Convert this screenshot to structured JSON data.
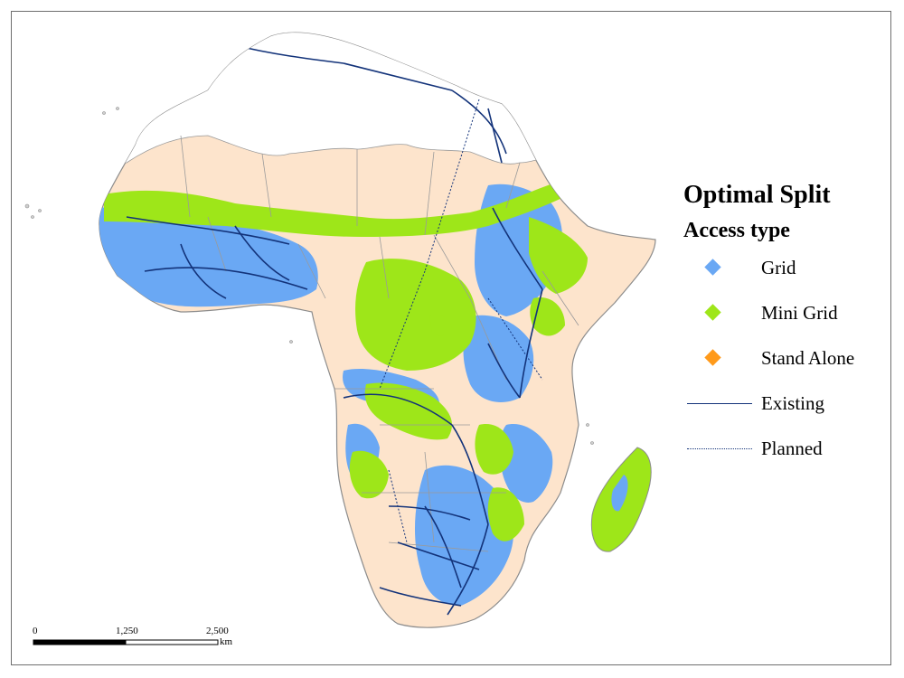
{
  "legend": {
    "title": "Optimal Split",
    "subtitle": "Access type",
    "items": [
      {
        "label": "Grid",
        "symbol": "diamond",
        "color": "#6aa8f4"
      },
      {
        "label": "Mini Grid",
        "symbol": "diamond",
        "color": "#9ee619"
      },
      {
        "label": "Stand Alone",
        "symbol": "diamond",
        "color": "#ff9a1a"
      },
      {
        "label": "Existing",
        "symbol": "solid-line",
        "color": "#13337a"
      },
      {
        "label": "Planned",
        "symbol": "dotted-line",
        "color": "#13337a"
      }
    ]
  },
  "scalebar": {
    "labels": [
      "0",
      "1,250",
      "2,500"
    ],
    "unit": "km"
  },
  "colors": {
    "no_data_land": "#fde4cc",
    "north_africa_land": "#ffffff",
    "border": "#9a9a9a",
    "grid": "#6aa8f4",
    "mini_grid": "#9ee619",
    "transmission": "#13337a"
  }
}
